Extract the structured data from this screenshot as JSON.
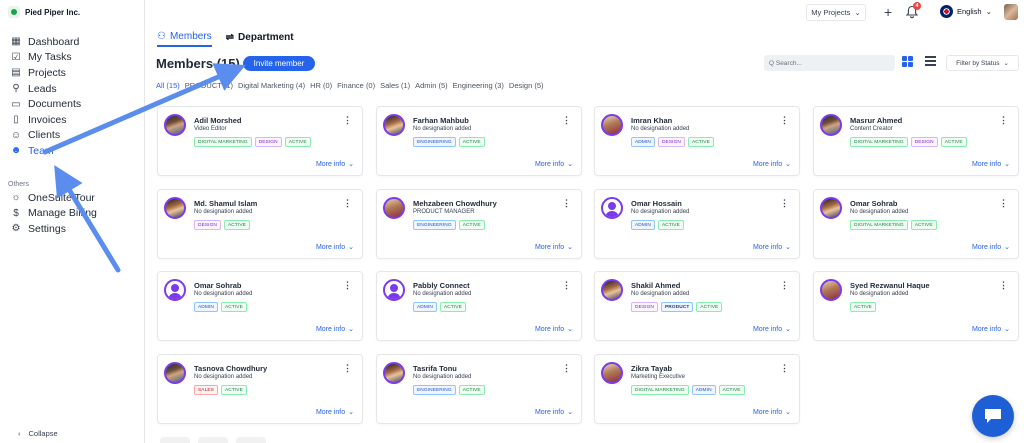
{
  "brand": {
    "name": "Pied Piper Inc."
  },
  "sidebar": {
    "items": [
      {
        "label": "Dashboard",
        "icon": "dashboard-icon",
        "glyph": "▦"
      },
      {
        "label": "My Tasks",
        "icon": "tasks-icon",
        "glyph": "☑"
      },
      {
        "label": "Projects",
        "icon": "projects-icon",
        "glyph": "▤"
      },
      {
        "label": "Leads",
        "icon": "leads-icon",
        "glyph": "⚲"
      },
      {
        "label": "Documents",
        "icon": "documents-icon",
        "glyph": "▭"
      },
      {
        "label": "Invoices",
        "icon": "invoices-icon",
        "glyph": "▯"
      },
      {
        "label": "Clients",
        "icon": "clients-icon",
        "glyph": "☺"
      },
      {
        "label": "Team",
        "icon": "team-icon",
        "glyph": "☻"
      }
    ],
    "section_label": "Others",
    "others": [
      {
        "label": "OneSuite Tour",
        "icon": "tour-icon",
        "glyph": "☼"
      },
      {
        "label": "Manage Billing",
        "icon": "billing-icon",
        "glyph": "$"
      },
      {
        "label": "Settings",
        "icon": "settings-icon",
        "glyph": "⚙"
      }
    ],
    "collapse_label": "Collapse"
  },
  "topbar": {
    "projects_label": "My Projects",
    "notification_count": "4",
    "language": "English"
  },
  "tabs": {
    "members": "Members",
    "department": "Department"
  },
  "header": {
    "title": "Members (15)",
    "invite_label": "Invite member",
    "search_placeholder": "Q Search...",
    "filter_label": "Filter by Status"
  },
  "filters": [
    "All (15)",
    "PRODUCT (1)",
    "Digital Marketing (4)",
    "HR (0)",
    "Finance (0)",
    "Sales (1)",
    "Admin (5)",
    "Engineering (3)",
    "Design (5)"
  ],
  "more_info_label": "More info",
  "members": [
    {
      "name": "Adil Morshed",
      "designation": "Video Editor",
      "avatar": "photo",
      "tags": [
        [
          "DIGITAL MARKETING",
          "green"
        ],
        [
          "DESIGN",
          "purple"
        ],
        [
          "ACTIVE",
          "green"
        ]
      ]
    },
    {
      "name": "Farhan Mahbub",
      "designation": "No designation added",
      "avatar": "photo",
      "tags": [
        [
          "ENGINEERING",
          "blue"
        ],
        [
          "ACTIVE",
          "green"
        ]
      ]
    },
    {
      "name": "Imran Khan",
      "designation": "No designation added",
      "avatar": "photo",
      "tags": [
        [
          "ADMIN",
          "blue"
        ],
        [
          "DESIGN",
          "purple"
        ],
        [
          "ACTIVE",
          "green"
        ]
      ]
    },
    {
      "name": "Masrur Ahmed",
      "designation": "Content Creator",
      "avatar": "photo",
      "tags": [
        [
          "DIGITAL MARKETING",
          "green"
        ],
        [
          "DESIGN",
          "purple"
        ],
        [
          "ACTIVE",
          "green"
        ]
      ]
    },
    {
      "name": "Md. Shamul Islam",
      "designation": "No designation added",
      "avatar": "photo",
      "tags": [
        [
          "DESIGN",
          "purple"
        ],
        [
          "ACTIVE",
          "green"
        ]
      ]
    },
    {
      "name": "Mehzabeen Chowdhury",
      "designation": "PRODUCT MANAGER",
      "avatar": "photo",
      "tags": [
        [
          "ENGINEERING",
          "blue"
        ],
        [
          "ACTIVE",
          "green"
        ]
      ]
    },
    {
      "name": "Omar Hossain",
      "designation": "No designation added",
      "avatar": "placeholder",
      "tags": [
        [
          "ADMIN",
          "blue"
        ],
        [
          "ACTIVE",
          "green"
        ]
      ]
    },
    {
      "name": "Omar Sohrab",
      "designation": "No designation added",
      "avatar": "photo",
      "tags": [
        [
          "DIGITAL MARKETING",
          "green"
        ],
        [
          "ACTIVE",
          "green"
        ]
      ]
    },
    {
      "name": "Omar Sohrab",
      "designation": "No designation added",
      "avatar": "placeholder",
      "tags": [
        [
          "ADMIN",
          "blue"
        ],
        [
          "ACTIVE",
          "green"
        ]
      ]
    },
    {
      "name": "Pabbly Connect",
      "designation": "No designation added",
      "avatar": "placeholder",
      "tags": [
        [
          "ADMIN",
          "blue"
        ],
        [
          "ACTIVE",
          "green"
        ]
      ]
    },
    {
      "name": "Shakil Ahmed",
      "designation": "No designation added",
      "avatar": "photo",
      "tags": [
        [
          "DESIGN",
          "purple"
        ],
        [
          "PRODUCT",
          "blue-dark"
        ],
        [
          "ACTIVE",
          "green"
        ]
      ]
    },
    {
      "name": "Syed Rezwanul Haque",
      "designation": "No designation added",
      "avatar": "photo",
      "tags": [
        [
          "ACTIVE",
          "green"
        ]
      ]
    },
    {
      "name": "Tasnova Chowdhury",
      "designation": "No designation added",
      "avatar": "photo",
      "tags": [
        [
          "SALES",
          "red"
        ],
        [
          "ACTIVE",
          "green"
        ]
      ]
    },
    {
      "name": "Tasrifa Tonu",
      "designation": "No designation added",
      "avatar": "photo",
      "tags": [
        [
          "ENGINEERING",
          "blue"
        ],
        [
          "ACTIVE",
          "green"
        ]
      ]
    },
    {
      "name": "Zikra Tayab",
      "designation": "Marketing Executive",
      "avatar": "photo",
      "tags": [
        [
          "DIGITAL MARKETING",
          "green"
        ],
        [
          "ADMIN",
          "blue"
        ],
        [
          "ACTIVE",
          "green"
        ]
      ]
    }
  ],
  "colors": {
    "accent": "#2563eb",
    "arrow": "#5b8def",
    "avatar_ring": "#7c3aed"
  }
}
